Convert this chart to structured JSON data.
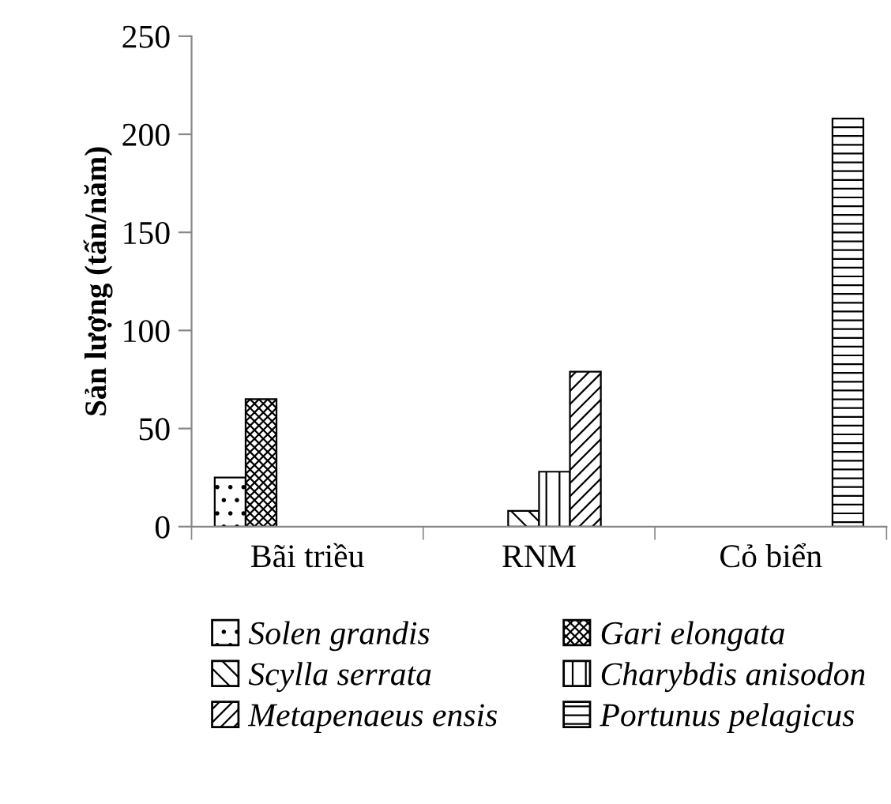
{
  "chart_data": {
    "type": "bar",
    "ylabel": "Sản lượng (tấn/năm)",
    "categories": [
      "Bãi triều",
      "RNM",
      "Cỏ biển"
    ],
    "series": [
      {
        "name": "Solen grandis",
        "color": "#000000",
        "values": [
          25,
          null,
          null
        ]
      },
      {
        "name": "Gari elongata",
        "color": "#000000",
        "values": [
          65,
          null,
          null
        ]
      },
      {
        "name": "Scylla serrata",
        "color": "#000000",
        "values": [
          null,
          8,
          null
        ]
      },
      {
        "name": "Charybdis anisodon",
        "color": "#000000",
        "values": [
          null,
          28,
          null
        ]
      },
      {
        "name": "Metapenaeus ensis",
        "color": "#000000",
        "values": [
          null,
          79,
          null
        ]
      },
      {
        "name": "Portunus pelagicus",
        "color": "#000000",
        "values": [
          null,
          null,
          208
        ]
      }
    ],
    "ylim": [
      0,
      250
    ],
    "yticks": [
      0,
      50,
      100,
      150,
      200,
      250
    ],
    "grid": false,
    "legend": "bottom"
  }
}
